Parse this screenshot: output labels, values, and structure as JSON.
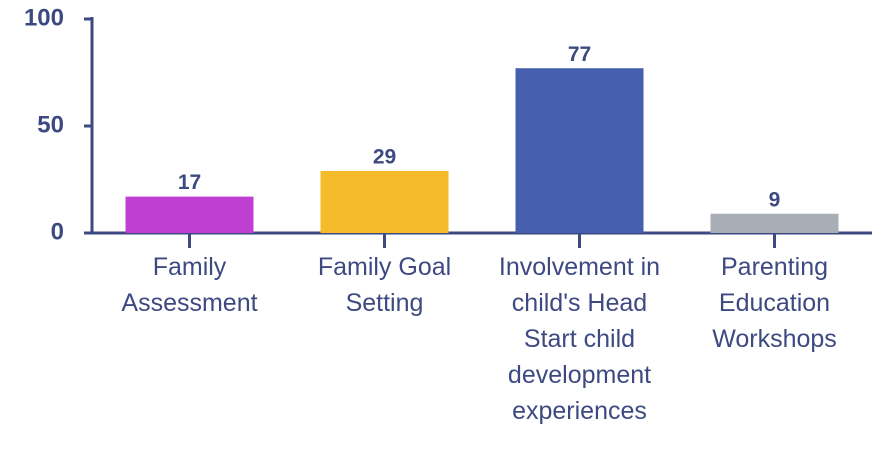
{
  "chart_data": {
    "type": "bar",
    "categories": [
      "Family Assessment",
      "Family Goal Setting",
      "Involvement in child's Head Start child development experiences",
      "Parenting Education Workshops"
    ],
    "values": [
      17,
      29,
      77,
      9
    ],
    "colors": [
      "#c03fd3",
      "#f6bb2a",
      "#455fae",
      "#a9adb5"
    ],
    "ylim": [
      0,
      100
    ],
    "yticks": [
      0,
      50,
      100
    ],
    "grid": false
  }
}
